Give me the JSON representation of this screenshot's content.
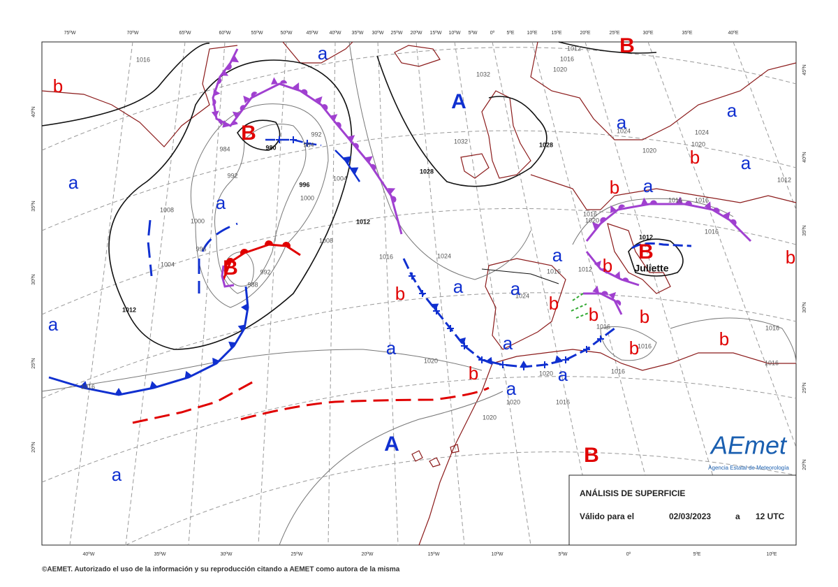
{
  "top_longitudes": [
    "75ºW",
    "70ºW",
    "65ºW",
    "60ºW",
    "55ºW",
    "50ºW",
    "45ºW",
    "40ºW",
    "35ºW",
    "30ºW",
    "25ºW",
    "20ºW",
    "15ºW",
    "10ºW",
    "5ºW",
    "0º",
    "5ºE",
    "10ºE",
    "15ºE",
    "20ºE",
    "25ºE",
    "30ºE",
    "35ºE",
    "40ºE"
  ],
  "bottom_longitudes": [
    "40ºW",
    "35ºW",
    "30ºW",
    "25ºW",
    "20ºW",
    "15ºW",
    "10ºW",
    "5ºW",
    "0º",
    "5ºE",
    "10ºE"
  ],
  "left_latitudes": [
    "40ºN",
    "35ºN",
    "30ºN",
    "25ºN",
    "20ºN"
  ],
  "right_latitudes": [
    "45ºN",
    "40ºN",
    "35ºN",
    "30ºN",
    "25ºN",
    "20ºN"
  ],
  "pressure_systems": [
    {
      "text": "b",
      "color": "#e00000"
    },
    {
      "text": "a",
      "color": "#1030d0"
    },
    {
      "text": "B",
      "color": "#e00000"
    },
    {
      "text": "A",
      "color": "#1030d0"
    },
    {
      "text": "a",
      "color": "#1030d0"
    },
    {
      "text": "B",
      "color": "#e00000"
    },
    {
      "text": "a",
      "color": "#1030d0"
    },
    {
      "text": "b",
      "color": "#e00000"
    },
    {
      "text": "a",
      "color": "#1030d0"
    },
    {
      "text": "a",
      "color": "#1030d0"
    },
    {
      "text": "b",
      "color": "#e00000"
    },
    {
      "text": "a",
      "color": "#1030d0"
    },
    {
      "text": "a",
      "color": "#1030d0"
    },
    {
      "text": "B",
      "color": "#e00000"
    },
    {
      "text": "a",
      "color": "#1030d0"
    },
    {
      "text": "b",
      "color": "#e00000"
    },
    {
      "text": "B",
      "color": "#e00000"
    },
    {
      "text": "b",
      "color": "#e00000"
    },
    {
      "text": "a",
      "color": "#1030d0"
    },
    {
      "text": "a",
      "color": "#1030d0"
    },
    {
      "text": "b",
      "color": "#e00000"
    },
    {
      "text": "b",
      "color": "#e00000"
    },
    {
      "text": "b",
      "color": "#e00000"
    },
    {
      "text": "b",
      "color": "#e00000"
    },
    {
      "text": "a",
      "color": "#1030d0"
    },
    {
      "text": "b",
      "color": "#e00000"
    },
    {
      "text": "a",
      "color": "#1030d0"
    },
    {
      "text": "b",
      "color": "#e00000"
    },
    {
      "text": "a",
      "color": "#1030d0"
    },
    {
      "text": "b",
      "color": "#e00000"
    },
    {
      "text": "a",
      "color": "#1030d0"
    },
    {
      "text": "a",
      "color": "#1030d0"
    },
    {
      "text": "A",
      "color": "#1030d0"
    },
    {
      "text": "B",
      "color": "#e00000"
    },
    {
      "text": "a",
      "color": "#1030d0"
    }
  ],
  "isobar_labels": [
    "1016",
    "1032",
    "1012",
    "1020",
    "1016",
    "1024",
    "1020",
    "1024",
    "1020",
    "1032",
    "1028",
    "1028",
    "980",
    "992",
    "984",
    "996",
    "1004",
    "1000",
    "992",
    "984",
    "1012",
    "1008",
    "1008",
    "1000",
    "996",
    "1004",
    "992",
    "988",
    "1012",
    "1016",
    "1024",
    "1024",
    "1016",
    "1020",
    "1016",
    "1016",
    "1016",
    "1012",
    "1012",
    "1012",
    "1016",
    "1016",
    "1016",
    "1016",
    "1016",
    "1016",
    "1020",
    "1020",
    "1020",
    "1016",
    "1020",
    "1016"
  ],
  "storm_name": "Juliette",
  "info_box": {
    "title": "ANÁLISIS DE SUPERFICIE",
    "valid_label": "Válido para el",
    "date": "02/03/2023",
    "separator": "a",
    "time": "12 UTC"
  },
  "logo": {
    "name": "AEmet",
    "subtitle": "Agencia Estatal de Meteorología"
  },
  "footer": "©AEMET. Autorizado el uso de la información y su reproducción citando a AEMET como autora de la misma"
}
